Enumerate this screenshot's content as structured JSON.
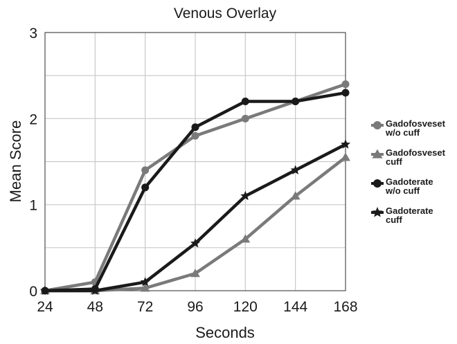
{
  "chart_data": {
    "type": "line",
    "title": "Venous Overlay",
    "xlabel": "Seconds",
    "ylabel": "Mean Score",
    "categories": [
      "24",
      "48",
      "72",
      "96",
      "120",
      "144",
      "168"
    ],
    "ylim": [
      0,
      3
    ],
    "yticks": [
      "0",
      "1",
      "2",
      "3"
    ],
    "grid": true,
    "legend_position": "right",
    "series": [
      {
        "name_lines": [
          "Gadofosveset",
          "w/o cuff"
        ],
        "marker": "circle",
        "color": "#7a7a7a",
        "values": [
          0,
          0.1,
          1.4,
          1.8,
          2.0,
          2.2,
          2.4
        ]
      },
      {
        "name_lines": [
          "Gadofosveset",
          "cuff"
        ],
        "marker": "triangle",
        "color": "#7a7a7a",
        "values": [
          0,
          0,
          0.03,
          0.2,
          0.6,
          1.1,
          1.55
        ]
      },
      {
        "name_lines": [
          "Gadoterate",
          "w/o cuff"
        ],
        "marker": "circle",
        "color": "#1a1a1a",
        "values": [
          0,
          0.02,
          1.2,
          1.9,
          2.2,
          2.2,
          2.3
        ]
      },
      {
        "name_lines": [
          "Gadoterate",
          "cuff"
        ],
        "marker": "star",
        "color": "#1a1a1a",
        "values": [
          0,
          0,
          0.1,
          0.55,
          1.1,
          1.4,
          1.7
        ]
      }
    ]
  }
}
